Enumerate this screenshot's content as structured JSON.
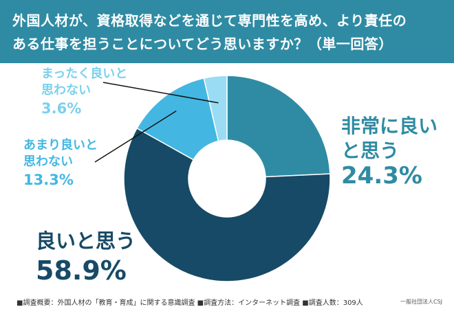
{
  "header": {
    "title_line1": "外国人材が、資格取得などを通じて専門性を高め、より責任の",
    "title_line2": "ある仕事を担うことについてどう思いますか？（単一回答）"
  },
  "chart_data": {
    "type": "pie",
    "title": "外国人材が、資格取得などを通じて専門性を高め、より責任のある仕事を担うことについてどう思いますか？（単一回答）",
    "slices": [
      {
        "label_line1": "非常に良い",
        "label_line2": "と思う",
        "label": "非常に良いと思う",
        "value": 24.3,
        "value_text": "24.3%",
        "color": "#2f8ba3"
      },
      {
        "label_line1": "良いと思う",
        "label_line2": "",
        "label": "良いと思う",
        "value": 58.9,
        "value_text": "58.9%",
        "color": "#174a66"
      },
      {
        "label_line1": "あまり良いと",
        "label_line2": "思わない",
        "label": "あまり良いと思わない",
        "value": 13.3,
        "value_text": "13.3%",
        "color": "#43b7e2"
      },
      {
        "label_line1": "まったく良いと",
        "label_line2": "思わない",
        "label": "まったく良いと思わない",
        "value": 3.6,
        "value_text": "3.6%",
        "color": "#9adcf4"
      }
    ]
  },
  "footer": {
    "note": "■調査概要：外国人材の「教育・育成」に関する意識調査 ■調査方法：インターネット調査 ■調査人数：309人",
    "credit": "一般社団法人CSJ"
  }
}
